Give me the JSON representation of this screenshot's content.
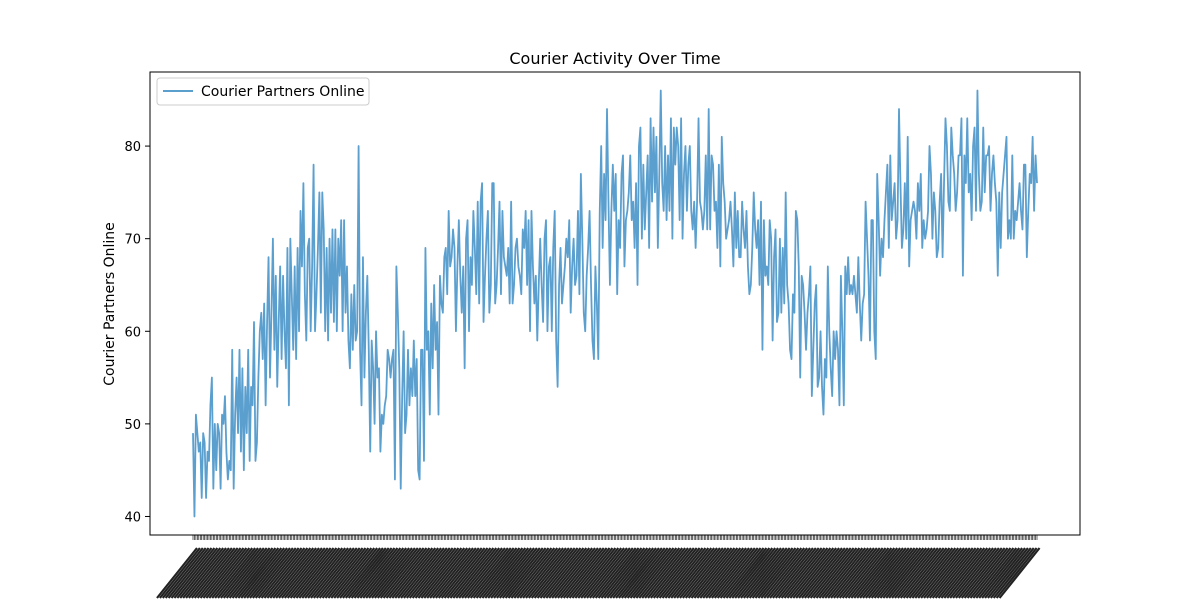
{
  "chart_data": {
    "type": "line",
    "title": "Courier Activity Over Time",
    "xlabel": "",
    "ylabel": "Courier Partners Online",
    "ylim": [
      38,
      88
    ],
    "yticks": [
      40,
      50,
      60,
      70,
      80
    ],
    "grid": false,
    "legend_position": "upper-left",
    "x_tick_labels": "unreadable",
    "series": [
      {
        "name": "Courier Partners Online",
        "color": "#5b9fcf",
        "values": [
          49,
          40,
          51,
          49,
          47,
          48,
          42,
          49,
          48,
          42,
          47,
          46,
          52,
          55,
          43,
          50,
          45,
          50,
          49,
          43,
          51,
          50,
          53,
          47,
          44,
          46,
          45,
          58,
          43,
          51,
          55,
          49,
          58,
          47,
          56,
          45,
          54,
          49,
          58,
          46,
          54,
          52,
          61,
          46,
          48,
          55,
          60,
          62,
          57,
          63,
          52,
          61,
          68,
          55,
          62,
          70,
          58,
          66,
          54,
          61,
          67,
          57,
          66,
          60,
          56,
          69,
          52,
          70,
          64,
          58,
          67,
          57,
          69,
          60,
          73,
          67,
          76,
          64,
          59,
          69,
          70,
          60,
          67,
          78,
          60,
          64,
          69,
          75,
          62,
          75,
          71,
          60,
          69,
          59,
          70,
          62,
          71,
          61,
          71,
          60,
          70,
          66,
          72,
          60,
          72,
          62,
          67,
          59,
          56,
          64,
          58,
          65,
          59,
          60,
          80,
          58,
          52,
          68,
          55,
          62,
          66,
          58,
          47,
          59,
          56,
          50,
          60,
          55,
          56,
          47,
          51,
          50,
          52,
          53,
          58,
          57,
          55,
          57,
          58,
          44,
          67,
          62,
          56,
          43,
          53,
          60,
          49,
          51,
          58,
          52,
          56,
          53,
          59,
          53,
          57,
          45,
          44,
          58,
          58,
          46,
          69,
          58,
          60,
          51,
          63,
          56,
          65,
          58,
          61,
          51,
          66,
          63,
          62,
          68,
          69,
          64,
          73,
          67,
          68,
          71,
          69,
          60,
          67,
          72,
          66,
          62,
          67,
          56,
          70,
          72,
          60,
          68,
          65,
          73,
          69,
          64,
          74,
          63,
          74,
          76,
          61,
          66,
          70,
          73,
          62,
          65,
          76,
          76,
          63,
          65,
          69,
          74,
          64,
          73,
          68,
          67,
          66,
          69,
          63,
          74,
          63,
          65,
          69,
          70,
          67,
          66,
          64,
          71,
          69,
          73,
          65,
          72,
          60,
          73,
          67,
          63,
          66,
          59,
          65,
          70,
          65,
          61,
          70,
          72,
          60,
          67,
          68,
          60,
          69,
          73,
          59,
          54,
          65,
          69,
          63,
          65,
          67,
          70,
          68,
          72,
          62,
          67,
          70,
          65,
          66,
          73,
          64,
          77,
          70,
          62,
          60,
          66,
          69,
          73,
          65,
          59,
          57,
          67,
          63,
          57,
          73,
          80,
          69,
          77,
          72,
          84,
          74,
          65,
          73,
          78,
          73,
          77,
          64,
          72,
          69,
          77,
          79,
          67,
          72,
          73,
          75,
          79,
          72,
          74,
          69,
          76,
          65,
          80,
          82,
          70,
          78,
          71,
          75,
          79,
          69,
          83,
          74,
          82,
          75,
          81,
          69,
          77,
          86,
          76,
          73,
          80,
          72,
          79,
          73,
          83,
          70,
          82,
          78,
          82,
          80,
          72,
          83,
          70,
          77,
          80,
          73,
          78,
          80,
          73,
          71,
          74,
          69,
          74,
          83,
          74,
          73,
          71,
          73,
          79,
          71,
          84,
          71,
          79,
          78,
          73,
          74,
          69,
          78,
          67,
          81,
          76,
          74,
          70,
          71,
          72,
          74,
          71,
          67,
          75,
          69,
          73,
          68,
          68,
          74,
          71,
          69,
          73,
          67,
          64,
          65,
          69,
          75,
          71,
          69,
          72,
          65,
          74,
          58,
          72,
          66,
          67,
          65,
          72,
          70,
          59,
          68,
          71,
          61,
          62,
          70,
          62,
          69,
          63,
          75,
          65,
          63,
          58,
          57,
          64,
          62,
          73,
          72,
          67,
          55,
          66,
          65,
          62,
          58,
          62,
          64,
          67,
          53,
          58,
          63,
          65,
          54,
          55,
          60,
          54,
          51,
          57,
          55,
          67,
          60,
          56,
          53,
          60,
          57,
          60,
          58,
          52,
          66,
          60,
          52,
          67,
          64,
          68,
          64,
          65,
          64,
          66,
          64,
          62,
          68,
          63,
          59,
          63,
          64,
          74,
          70,
          66,
          59,
          72,
          72,
          60,
          57,
          77,
          72,
          66,
          70,
          68,
          72,
          75,
          78,
          69,
          79,
          72,
          74,
          76,
          70,
          72,
          84,
          76,
          69,
          71,
          76,
          70,
          81,
          67,
          72,
          73,
          74,
          73,
          70,
          76,
          73,
          77,
          69,
          72,
          70,
          71,
          73,
          80,
          77,
          70,
          75,
          73,
          68,
          69,
          74,
          77,
          68,
          76,
          83,
          80,
          74,
          73,
          82,
          79,
          77,
          73,
          75,
          79,
          79,
          83,
          66,
          79,
          76,
          83,
          75,
          77,
          72,
          80,
          82,
          73,
          86,
          77,
          73,
          74,
          82,
          75,
          79,
          79,
          80,
          73,
          77,
          79,
          76,
          74,
          66,
          75,
          69,
          75,
          77,
          79,
          81,
          70,
          72,
          70,
          79,
          70,
          73,
          72,
          74,
          76,
          73,
          71,
          78,
          78,
          68,
          73,
          77,
          76,
          81,
          73,
          79,
          76
        ]
      }
    ]
  }
}
